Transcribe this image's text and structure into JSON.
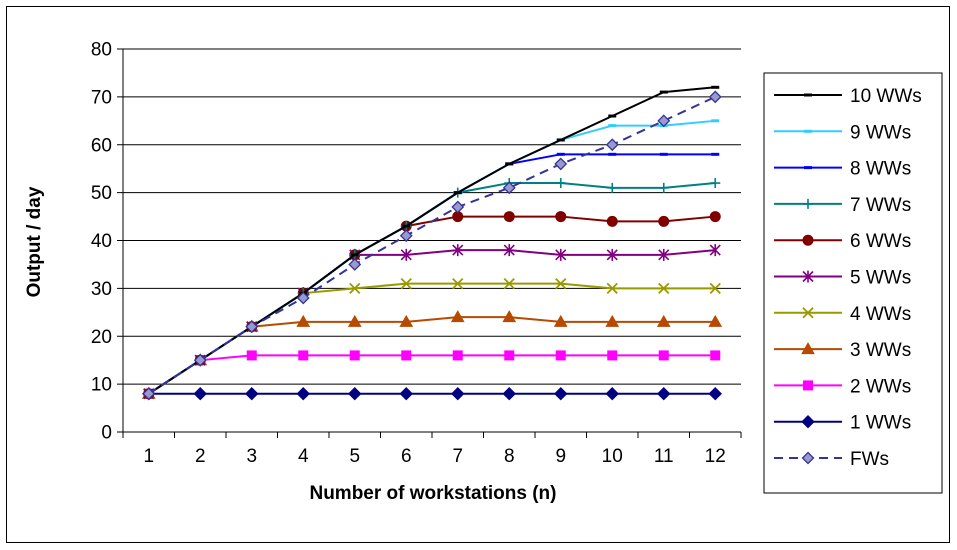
{
  "chart_data": {
    "type": "line",
    "title": "",
    "xlabel": "Number of workstations (n)",
    "ylabel": "Output / day",
    "categories": [
      "1",
      "2",
      "3",
      "4",
      "5",
      "6",
      "7",
      "8",
      "9",
      "10",
      "11",
      "12"
    ],
    "ylim": [
      0,
      80
    ],
    "yticks": [
      0,
      10,
      20,
      30,
      40,
      50,
      60,
      70,
      80
    ],
    "grid": "horizontal",
    "legend_position": "right",
    "series": [
      {
        "name": "10 WWs",
        "color": "#000000",
        "marker": "dash",
        "dashed": false,
        "values": [
          8,
          15,
          22,
          29,
          37,
          43,
          50,
          56,
          61,
          66,
          71,
          72
        ]
      },
      {
        "name": "9 WWs",
        "color": "#33CCFF",
        "marker": "dash",
        "dashed": false,
        "values": [
          8,
          15,
          22,
          29,
          37,
          43,
          50,
          56,
          61,
          64,
          64,
          65
        ]
      },
      {
        "name": "8 WWs",
        "color": "#0000FF",
        "marker": "dash",
        "dashed": false,
        "values": [
          8,
          15,
          22,
          29,
          37,
          43,
          50,
          56,
          58,
          58,
          58,
          58
        ]
      },
      {
        "name": "7 WWs",
        "color": "#008080",
        "marker": "plus",
        "dashed": false,
        "values": [
          8,
          15,
          22,
          29,
          37,
          43,
          50,
          52,
          52,
          51,
          51,
          52
        ]
      },
      {
        "name": "6 WWs",
        "color": "#800000",
        "marker": "circle",
        "dashed": false,
        "values": [
          8,
          15,
          22,
          29,
          37,
          43,
          45,
          45,
          45,
          44,
          44,
          45
        ]
      },
      {
        "name": "5 WWs",
        "color": "#800080",
        "marker": "star",
        "dashed": false,
        "values": [
          8,
          15,
          22,
          29,
          37,
          37,
          38,
          38,
          37,
          37,
          37,
          38
        ]
      },
      {
        "name": "4 WWs",
        "color": "#999900",
        "marker": "x",
        "dashed": false,
        "values": [
          8,
          15,
          22,
          29,
          30,
          31,
          31,
          31,
          31,
          30,
          30,
          30
        ]
      },
      {
        "name": "3 WWs",
        "color": "#B84A00",
        "marker": "triangle",
        "dashed": false,
        "values": [
          8,
          15,
          22,
          23,
          23,
          23,
          24,
          24,
          23,
          23,
          23,
          23
        ]
      },
      {
        "name": "2 WWs",
        "color": "#FF00FF",
        "marker": "square",
        "dashed": false,
        "values": [
          8,
          15,
          16,
          16,
          16,
          16,
          16,
          16,
          16,
          16,
          16,
          16
        ]
      },
      {
        "name": "1 WWs",
        "color": "#000080",
        "marker": "diamond",
        "dashed": false,
        "values": [
          8,
          8,
          8,
          8,
          8,
          8,
          8,
          8,
          8,
          8,
          8,
          8
        ]
      },
      {
        "name": "FWs",
        "color": "#333399",
        "marker": "diamond-light",
        "dashed": true,
        "values": [
          8,
          15,
          22,
          28,
          35,
          41,
          47,
          51,
          56,
          60,
          65,
          70
        ]
      }
    ]
  }
}
